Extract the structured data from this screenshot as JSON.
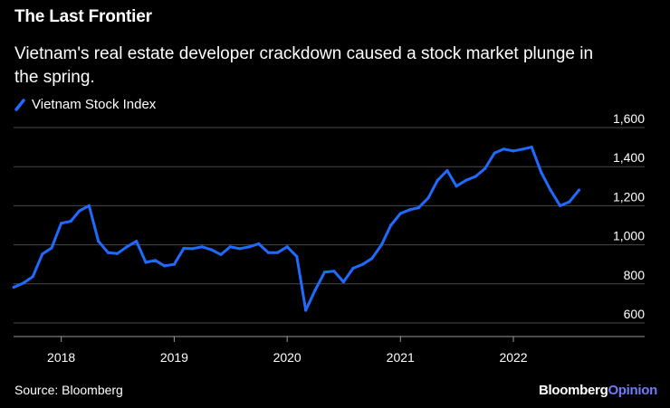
{
  "header": {
    "title": "The Last Frontier",
    "subtitle_line1": "Vietnam's real estate developer crackdown caused a stock market plunge in",
    "subtitle_line2": "the spring."
  },
  "footer": {
    "source": "Source: Bloomberg",
    "brand_part1": "Bloomberg",
    "brand_part2": "Opinion"
  },
  "colors": {
    "background": "#000000",
    "series": "#1f6bff",
    "grid": "#4a4a4a",
    "text": "#ffffff"
  },
  "chart_data": {
    "type": "line",
    "title": "The Last Frontier",
    "xlabel": "",
    "ylabel": "",
    "ylim": [
      600,
      1600
    ],
    "y_ticks": [
      600,
      800,
      1000,
      1200,
      1400,
      1600
    ],
    "y_tick_labels": [
      "600",
      "800",
      "1,000",
      "1,200",
      "1,400",
      "1,600"
    ],
    "x_ticks": [
      "2018",
      "2019",
      "2020",
      "2021",
      "2022"
    ],
    "xlim": [
      "2017-07-31",
      "2022-09-30"
    ],
    "grid": true,
    "y_axis_side": "right",
    "legend_position": "top-left",
    "series": [
      {
        "name": "Vietnam Stock Index",
        "x": [
          "2017-08-01",
          "2017-09-01",
          "2017-10-01",
          "2017-11-01",
          "2017-12-01",
          "2018-01-01",
          "2018-02-01",
          "2018-03-01",
          "2018-04-01",
          "2018-05-01",
          "2018-06-01",
          "2018-07-01",
          "2018-08-01",
          "2018-09-01",
          "2018-10-01",
          "2018-11-01",
          "2018-12-01",
          "2019-01-01",
          "2019-02-01",
          "2019-03-01",
          "2019-04-01",
          "2019-05-01",
          "2019-06-01",
          "2019-07-01",
          "2019-08-01",
          "2019-09-01",
          "2019-10-01",
          "2019-11-01",
          "2019-12-01",
          "2020-01-01",
          "2020-02-01",
          "2020-03-01",
          "2020-04-01",
          "2020-05-01",
          "2020-06-01",
          "2020-07-01",
          "2020-08-01",
          "2020-09-01",
          "2020-10-01",
          "2020-11-01",
          "2020-12-01",
          "2021-01-01",
          "2021-02-01",
          "2021-03-01",
          "2021-04-01",
          "2021-05-01",
          "2021-06-01",
          "2021-07-01",
          "2021-08-01",
          "2021-09-01",
          "2021-10-01",
          "2021-11-01",
          "2021-12-01",
          "2022-01-01",
          "2022-02-01",
          "2022-03-01",
          "2022-04-01",
          "2022-05-01",
          "2022-06-01",
          "2022-07-01",
          "2022-08-01"
        ],
        "values": [
          783,
          804,
          837,
          953,
          984,
          1110,
          1121,
          1174,
          1200,
          1018,
          960,
          955,
          990,
          1018,
          910,
          920,
          892,
          900,
          982,
          980,
          990,
          975,
          950,
          990,
          980,
          990,
          1005,
          960,
          960,
          990,
          940,
          665,
          770,
          860,
          865,
          810,
          880,
          900,
          930,
          1000,
          1100,
          1160,
          1180,
          1190,
          1240,
          1330,
          1380,
          1300,
          1330,
          1350,
          1390,
          1470,
          1490,
          1480,
          1490,
          1500,
          1370,
          1280,
          1200,
          1220,
          1280
        ]
      }
    ]
  }
}
